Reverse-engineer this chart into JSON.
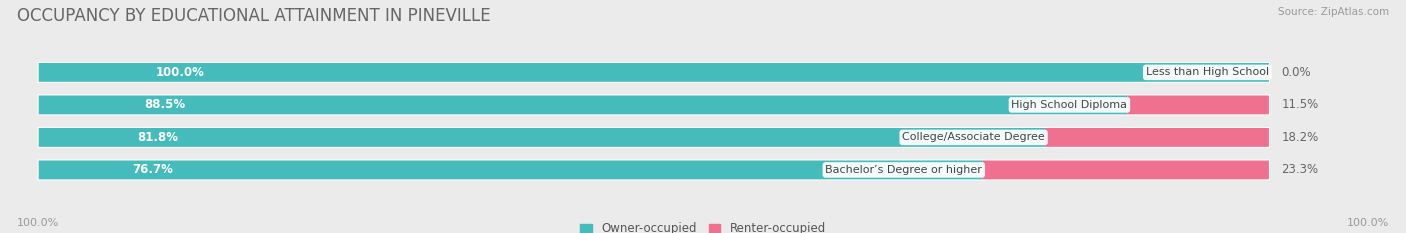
{
  "title": "OCCUPANCY BY EDUCATIONAL ATTAINMENT IN PINEVILLE",
  "source": "Source: ZipAtlas.com",
  "categories": [
    "Less than High School",
    "High School Diploma",
    "College/Associate Degree",
    "Bachelor’s Degree or higher"
  ],
  "owner_pct": [
    100.0,
    88.5,
    81.8,
    76.7
  ],
  "renter_pct": [
    0.0,
    11.5,
    18.2,
    23.3
  ],
  "owner_color": "#45BBBB",
  "renter_color": "#F07090",
  "bg_color": "#EBEBEB",
  "bar_track_color": "#DCDCDC",
  "bar_height": 0.58,
  "title_fontsize": 12,
  "label_fontsize": 8.5,
  "tick_fontsize": 8,
  "source_fontsize": 7.5,
  "legend_fontsize": 8.5,
  "x_left_label": "100.0%",
  "x_right_label": "100.0%",
  "xlim_left": 0,
  "xlim_right": 100
}
